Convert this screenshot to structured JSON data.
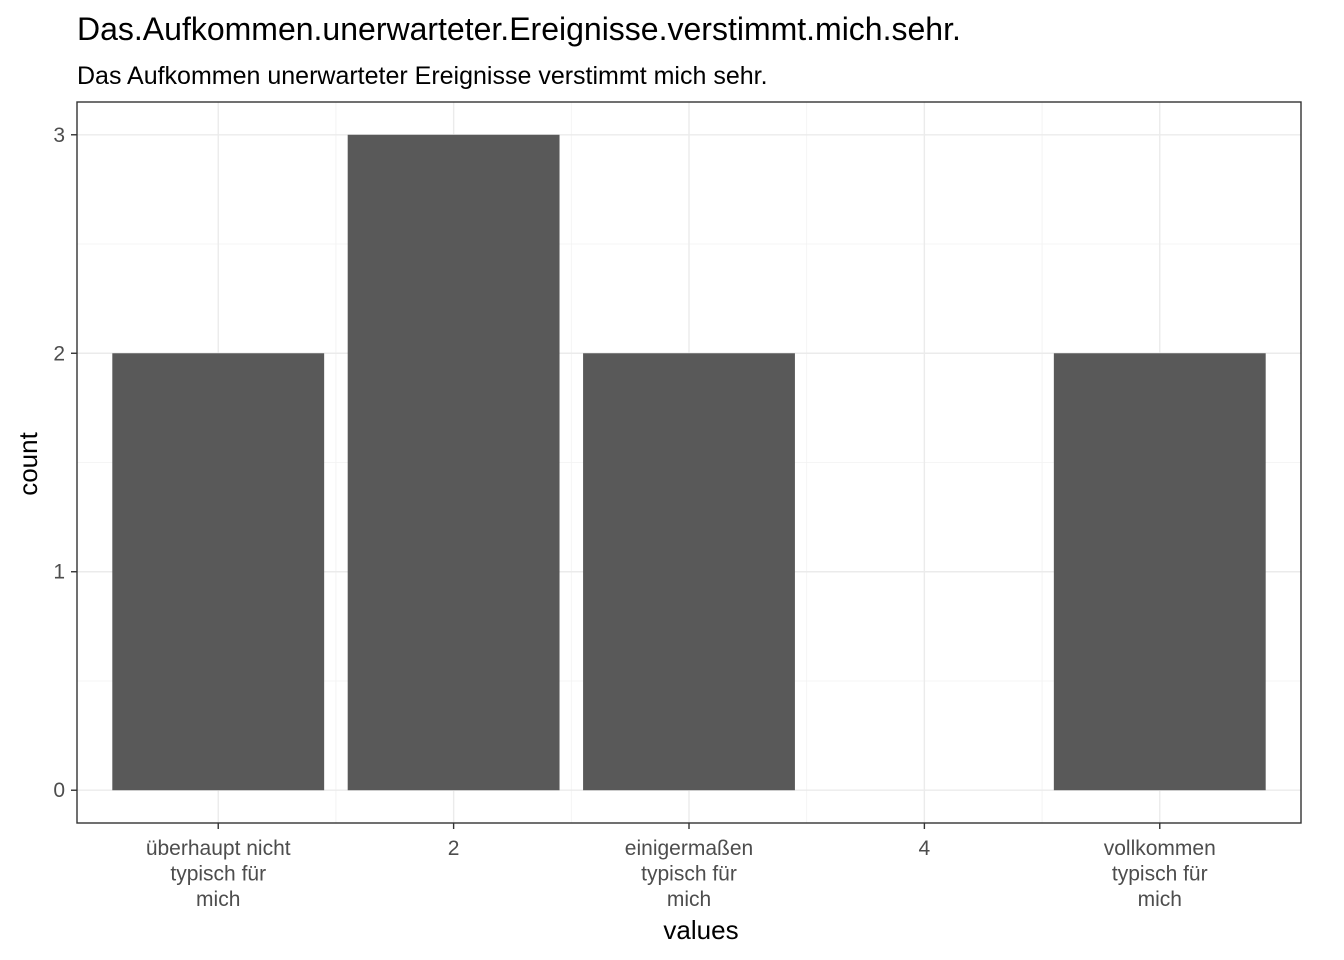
{
  "chart_data": {
    "type": "bar",
    "title": "Das.Aufkommen.unerwarteter.Ereignisse.verstimmt.mich.sehr.",
    "subtitle": "Das Aufkommen unerwarteter Ereignisse verstimmt mich sehr.",
    "xlabel": "values",
    "ylabel": "count",
    "categories": [
      [
        "überhaupt nicht",
        "typisch für",
        "mich"
      ],
      [
        "2"
      ],
      [
        "einigermaßen",
        "typisch für",
        "mich"
      ],
      [
        "4"
      ],
      [
        "vollkommen",
        "typisch für",
        "mich"
      ]
    ],
    "values": [
      2,
      3,
      2,
      0,
      2
    ],
    "yticks": [
      0,
      1,
      2,
      3
    ],
    "ylim": [
      -0.15,
      3.15
    ],
    "grid": true,
    "bar_color": "#595959"
  }
}
